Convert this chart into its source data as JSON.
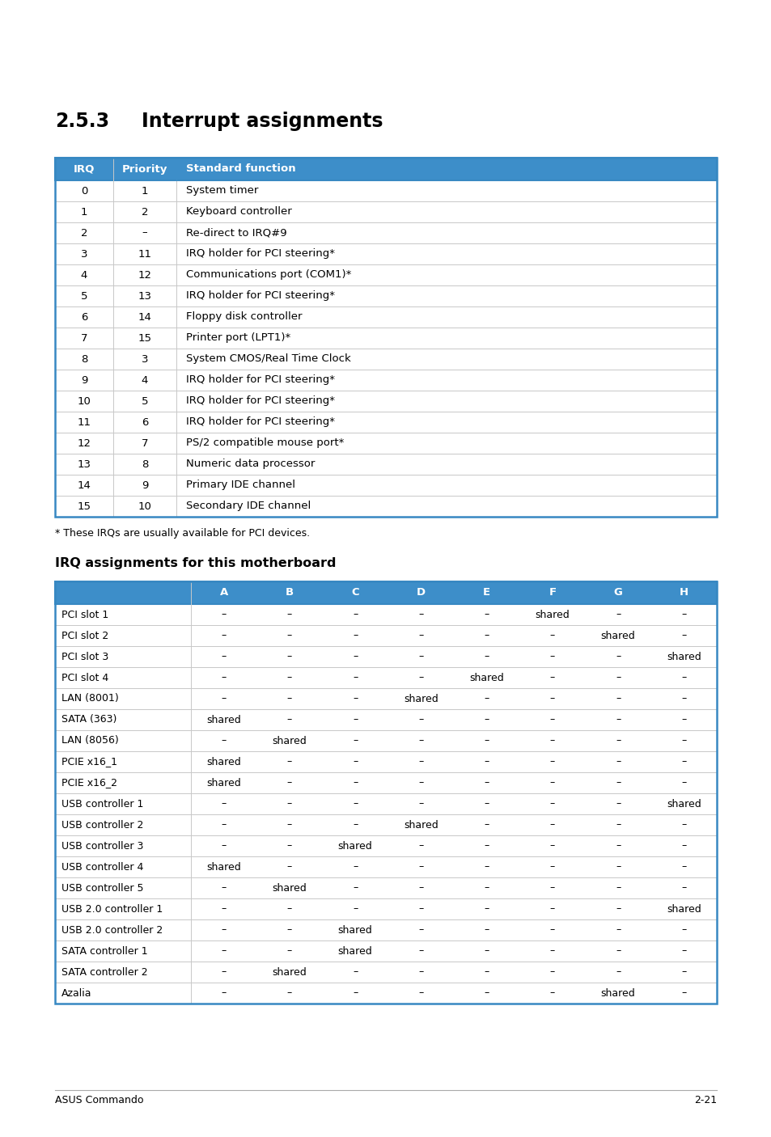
{
  "title1_num": "2.5.3",
  "title1_text": "Interrupt assignments",
  "title2": "IRQ assignments for this motherboard",
  "footnote": "* These IRQs are usually available for PCI devices.",
  "footer_left": "ASUS Commando",
  "footer_right": "2-21",
  "header_color": "#3d8ec9",
  "header_text_color": "#ffffff",
  "border_color": "#3788c2",
  "row_line_color": "#c8c8c8",
  "table1_headers": [
    "IRQ",
    "Priority",
    "Standard function"
  ],
  "table1_rows": [
    [
      "0",
      "1",
      "System timer"
    ],
    [
      "1",
      "2",
      "Keyboard controller"
    ],
    [
      "2",
      "–",
      "Re-direct to IRQ#9"
    ],
    [
      "3",
      "11",
      "IRQ holder for PCI steering*"
    ],
    [
      "4",
      "12",
      "Communications port (COM1)*"
    ],
    [
      "5",
      "13",
      "IRQ holder for PCI steering*"
    ],
    [
      "6",
      "14",
      "Floppy disk controller"
    ],
    [
      "7",
      "15",
      "Printer port (LPT1)*"
    ],
    [
      "8",
      "3",
      "System CMOS/Real Time Clock"
    ],
    [
      "9",
      "4",
      "IRQ holder for PCI steering*"
    ],
    [
      "10",
      "5",
      "IRQ holder for PCI steering*"
    ],
    [
      "11",
      "6",
      "IRQ holder for PCI steering*"
    ],
    [
      "12",
      "7",
      "PS/2 compatible mouse port*"
    ],
    [
      "13",
      "8",
      "Numeric data processor"
    ],
    [
      "14",
      "9",
      "Primary IDE channel"
    ],
    [
      "15",
      "10",
      "Secondary IDE channel"
    ]
  ],
  "table2_headers": [
    "",
    "A",
    "B",
    "C",
    "D",
    "E",
    "F",
    "G",
    "H"
  ],
  "table2_rows": [
    [
      "PCI slot 1",
      "–",
      "–",
      "–",
      "–",
      "–",
      "shared",
      "–",
      "–"
    ],
    [
      "PCI slot 2",
      "–",
      "–",
      "–",
      "–",
      "–",
      "–",
      "shared",
      "–"
    ],
    [
      "PCI slot 3",
      "–",
      "–",
      "–",
      "–",
      "–",
      "–",
      "–",
      "shared"
    ],
    [
      "PCI slot 4",
      "–",
      "–",
      "–",
      "–",
      "shared",
      "–",
      "–",
      "–"
    ],
    [
      "LAN (8001)",
      "–",
      "–",
      "–",
      "shared",
      "–",
      "–",
      "–",
      "–"
    ],
    [
      "SATA (363)",
      "shared",
      "–",
      "–",
      "–",
      "–",
      "–",
      "–",
      "–"
    ],
    [
      "LAN (8056)",
      "–",
      "shared",
      "–",
      "–",
      "–",
      "–",
      "–",
      "–"
    ],
    [
      "PCIE x16_1",
      "shared",
      "–",
      "–",
      "–",
      "–",
      "–",
      "–",
      "–"
    ],
    [
      "PCIE x16_2",
      "shared",
      "–",
      "–",
      "–",
      "–",
      "–",
      "–",
      "–"
    ],
    [
      "USB controller 1",
      "–",
      "–",
      "–",
      "–",
      "–",
      "–",
      "–",
      "shared"
    ],
    [
      "USB controller 2",
      "–",
      "–",
      "–",
      "shared",
      "–",
      "–",
      "–",
      "–"
    ],
    [
      "USB controller 3",
      "–",
      "–",
      "shared",
      "–",
      "–",
      "–",
      "–",
      "–"
    ],
    [
      "USB controller 4",
      "shared",
      "–",
      "–",
      "–",
      "–",
      "–",
      "–",
      "–"
    ],
    [
      "USB controller 5",
      "–",
      "shared",
      "–",
      "–",
      "–",
      "–",
      "–",
      "–"
    ],
    [
      "USB 2.0 controller 1",
      "–",
      "–",
      "–",
      "–",
      "–",
      "–",
      "–",
      "shared"
    ],
    [
      "USB 2.0 controller 2",
      "–",
      "–",
      "shared",
      "–",
      "–",
      "–",
      "–",
      "–"
    ],
    [
      "SATA controller 1",
      "–",
      "–",
      "shared",
      "–",
      "–",
      "–",
      "–",
      "–"
    ],
    [
      "SATA controller 2",
      "–",
      "shared",
      "–",
      "–",
      "–",
      "–",
      "–",
      "–"
    ],
    [
      "Azalia",
      "–",
      "–",
      "–",
      "–",
      "–",
      "–",
      "shared",
      "–"
    ]
  ]
}
